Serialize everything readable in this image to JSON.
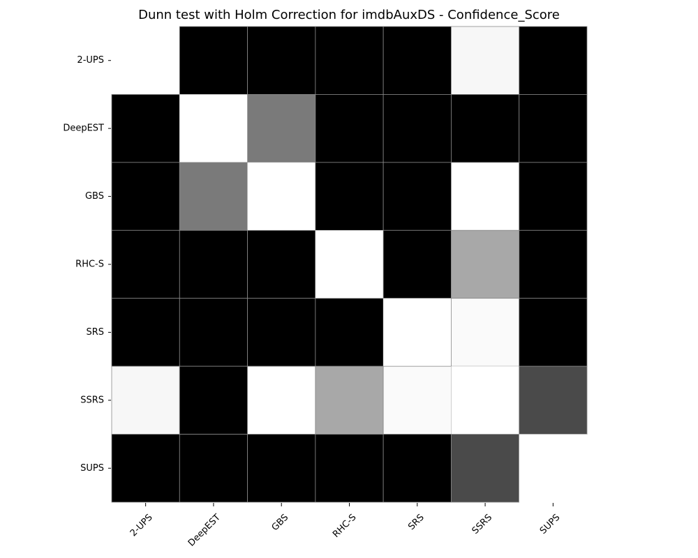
{
  "chart_data": {
    "type": "heatmap",
    "title": "Dunn test with Holm Correction for imdbAuxDS - Confidence_Score",
    "xlabel": "",
    "ylabel": "",
    "categories": [
      "2-UPS",
      "DeepEST",
      "GBS",
      "RHC-S",
      "SRS",
      "SSRS",
      "SUPS"
    ],
    "colormap": "grayscale (black = 0.0, white = 1.0)",
    "legend": "none",
    "grid": false,
    "values": [
      [
        1.0,
        0.0,
        0.0,
        0.0,
        0.0,
        0.97,
        0.0
      ],
      [
        0.0,
        1.0,
        0.48,
        0.0,
        0.0,
        0.0,
        0.0
      ],
      [
        0.0,
        0.48,
        1.0,
        0.0,
        0.0,
        1.0,
        0.0
      ],
      [
        0.0,
        0.0,
        0.0,
        1.0,
        0.0,
        0.66,
        0.0
      ],
      [
        0.0,
        0.0,
        0.0,
        0.0,
        1.0,
        0.98,
        0.0
      ],
      [
        0.97,
        0.0,
        1.0,
        0.66,
        0.98,
        1.0,
        0.29
      ],
      [
        0.0,
        0.0,
        0.0,
        0.0,
        0.0,
        0.29,
        1.0
      ]
    ]
  }
}
